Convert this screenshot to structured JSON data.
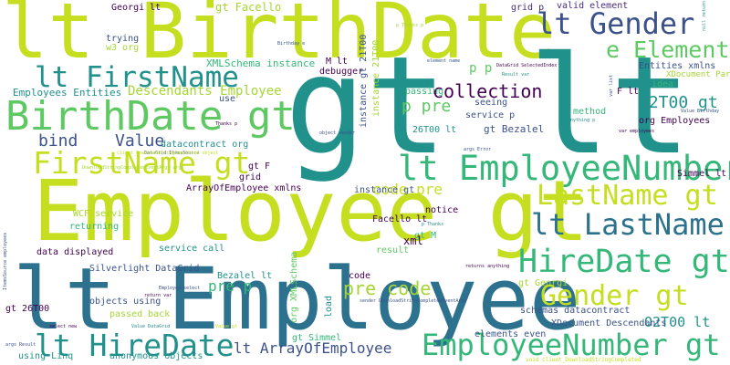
{
  "palette": {
    "background": "#ffffff",
    "lime": "#c5de1f",
    "yellow_green": "#a6d632",
    "green": "#5ec962",
    "teal_green": "#35b779",
    "teal": "#21918c",
    "blue_teal": "#2c728e",
    "blue": "#3b528b",
    "indigo": "#472d7b",
    "dark_purple": "#440154"
  },
  "words": [
    "lt BirthDate",
    "gt lt",
    "Employee gt",
    "lt Employee",
    "lt Gender",
    "e Element",
    "lt FirstName",
    "BirthDate gt",
    "FirstName gt",
    "lt EmployeeNumber",
    "LastName gt",
    "lt LastName",
    "HireDate gt",
    "EmployeeNumber gt",
    "lt HireDate",
    "Gender gt",
    "collection",
    "Descendants Employee",
    "xml Descendants",
    "p pre",
    "Value",
    "bind",
    "pre code",
    "code pre",
    "02T00 gt",
    "O2T00 lt",
    "lt ArrayOfEmployee",
    "pre p",
    "p p",
    "gt Facello",
    "XMLSchema instance",
    "Employees Entities",
    "Entities xmlns",
    "Georgi lt",
    "valid element",
    "grid p",
    "trying",
    "w3 org",
    "M lt",
    "debugger",
    "passing",
    "use",
    "seeing",
    "method",
    "org Employees",
    "idea",
    "F lt",
    "service p",
    "gt Bezalel",
    "26T00 lt",
    "instance gt",
    "datacontract org",
    "gt F",
    "grid",
    "ArrayOfEmployee xmlns",
    "WCF service",
    "Facello lt",
    "returning",
    "notice",
    "gt M",
    "data displayed",
    "result",
    "service call",
    "Silverlight DataGrid",
    "Bezalel lt",
    "objects using",
    "passed back",
    "gt 26T00",
    "code",
    "schemas datacontract",
    "XDocument Descendants",
    "org XMLSchema",
    "gt Georgi",
    "load",
    "Simmel lt",
    "gt Simmel",
    "elements even",
    "using Linq",
    "anonymous objects",
    "element name",
    "DataGrid SelectedIndex",
    "Result var",
    "XDocument Parse",
    "21T00 lt",
    "instance gt 21T00",
    "p Thanks",
    "var employees",
    "Birthday e",
    "Value Birthday",
    "null return",
    "void client_DownloadStringCompleted",
    "sender DownloadStringCompletedEventArgs",
    "args Error",
    "return var",
    "select new",
    "Value DataGrid",
    "Employee select",
    "ItemsSource employees",
    "DataGrid ItemsSource",
    "anything p",
    "Thanks p",
    "object sender",
    "client_DownloadStringCompleted object",
    "DownloadStringCompletedEventArgs args",
    "args Result",
    "Value gt",
    "returns anything",
    "var list",
    "instance 21T00",
    "p Thanks p"
  ]
}
